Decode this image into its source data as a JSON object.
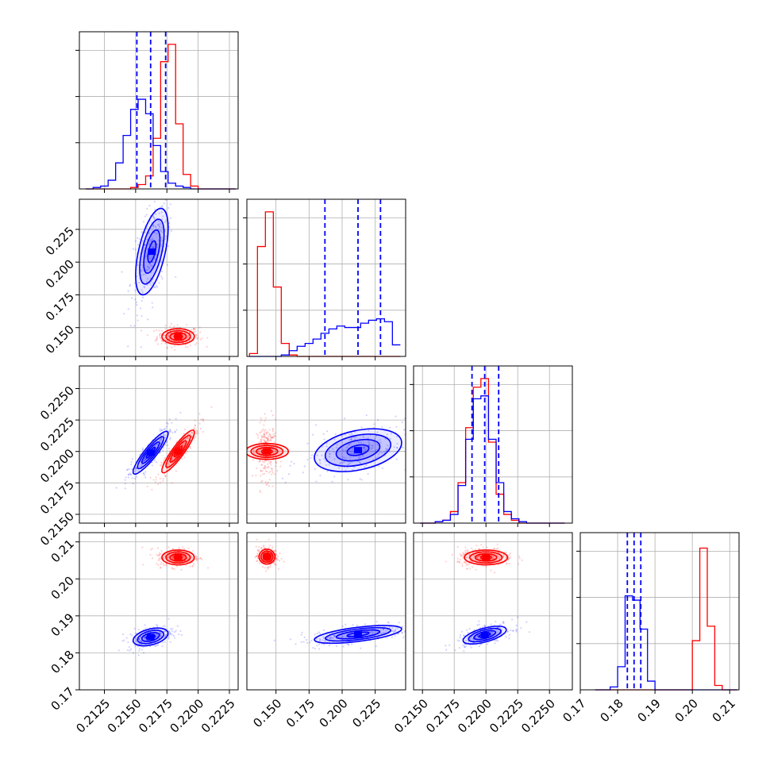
{
  "chart_data": {
    "type": "corner",
    "colors": {
      "blue": "#0000ff",
      "red": "#ff0000"
    },
    "series_color_names": [
      "blue",
      "red"
    ],
    "grid": true,
    "params": [
      {
        "range": [
          0.2105,
          0.2232
        ],
        "ticks": [
          "0.2125",
          "0.2150",
          "0.2175",
          "0.2200",
          "0.2225"
        ],
        "tick_values": [
          0.2125,
          0.215,
          0.2175,
          0.22,
          0.2225
        ]
      },
      {
        "range": [
          0.128,
          0.248
        ],
        "ticks": [
          "0.150",
          "0.175",
          "0.200",
          "0.225"
        ],
        "tick_values": [
          0.15,
          0.175,
          0.2,
          0.225
        ]
      },
      {
        "range": [
          0.2143,
          0.2268
        ],
        "ticks": [
          "0.2150",
          "0.2175",
          "0.2200",
          "0.2225",
          "0.2250"
        ],
        "tick_values": [
          0.215,
          0.2175,
          0.22,
          0.2225,
          0.225
        ]
      },
      {
        "range": [
          0.17,
          0.2125
        ],
        "ticks": [
          "0.17",
          "0.18",
          "0.19",
          "0.20",
          "0.21"
        ],
        "tick_values": [
          0.17,
          0.18,
          0.19,
          0.2,
          0.21
        ]
      }
    ],
    "histograms": [
      {
        "param": 0,
        "bin_edges": [
          0.211,
          0.2116,
          0.2122,
          0.2128,
          0.2134,
          0.214,
          0.2146,
          0.2152,
          0.2158,
          0.2164,
          0.217,
          0.2176,
          0.2182,
          0.2188,
          0.2194,
          0.22,
          0.2206,
          0.2212,
          0.2218,
          0.2224,
          0.223
        ],
        "blue": [
          0.0,
          0.01,
          0.02,
          0.06,
          0.18,
          0.37,
          0.55,
          0.62,
          0.52,
          0.3,
          0.12,
          0.04,
          0.02,
          0.01,
          0.0,
          0.0,
          0.0,
          0.0,
          0.0,
          0.0
        ],
        "red": [
          0.0,
          0.0,
          0.0,
          0.0,
          0.0,
          0.0,
          0.01,
          0.03,
          0.09,
          0.35,
          0.88,
          1.0,
          0.45,
          0.1,
          0.02,
          0.0,
          0.0,
          0.0,
          0.0,
          0.0
        ],
        "quantiles_blue": [
          0.2151,
          0.2162,
          0.2174
        ]
      },
      {
        "param": 1,
        "bin_edges": [
          0.13,
          0.136,
          0.142,
          0.148,
          0.154,
          0.16,
          0.166,
          0.172,
          0.178,
          0.184,
          0.19,
          0.196,
          0.202,
          0.208,
          0.214,
          0.22,
          0.226,
          0.232,
          0.238,
          0.244
        ],
        "blue": [
          0.0,
          0.0,
          0.0,
          0.0,
          0.01,
          0.04,
          0.07,
          0.09,
          0.12,
          0.16,
          0.19,
          0.21,
          0.2,
          0.2,
          0.23,
          0.25,
          0.26,
          0.24,
          0.08
        ],
        "red": [
          0.02,
          0.76,
          1.0,
          0.48,
          0.09,
          0.01,
          0.0,
          0.0,
          0.0,
          0.0,
          0.0,
          0.0,
          0.0,
          0.0,
          0.0,
          0.0,
          0.0,
          0.0,
          0.0
        ],
        "quantiles_blue": [
          0.187,
          0.212,
          0.229
        ]
      },
      {
        "param": 2,
        "bin_edges": [
          0.2148,
          0.2154,
          0.216,
          0.2166,
          0.2172,
          0.2178,
          0.2184,
          0.219,
          0.2196,
          0.2202,
          0.2208,
          0.2214,
          0.222,
          0.2226,
          0.2232,
          0.2238,
          0.2244,
          0.225,
          0.2256,
          0.2262
        ],
        "blue": [
          0.0,
          0.0,
          0.01,
          0.02,
          0.06,
          0.26,
          0.58,
          0.86,
          0.88,
          0.58,
          0.28,
          0.08,
          0.03,
          0.01,
          0.0,
          0.0,
          0.0,
          0.0,
          0.0
        ],
        "red": [
          0.0,
          0.0,
          0.01,
          0.02,
          0.08,
          0.28,
          0.66,
          0.94,
          1.0,
          0.56,
          0.2,
          0.06,
          0.02,
          0.0,
          0.0,
          0.0,
          0.0,
          0.0,
          0.0
        ],
        "quantiles_blue": [
          0.2189,
          0.2199,
          0.221
        ]
      },
      {
        "param": 3,
        "bin_edges": [
          0.174,
          0.176,
          0.178,
          0.18,
          0.182,
          0.184,
          0.186,
          0.188,
          0.19,
          0.192,
          0.194,
          0.196,
          0.198,
          0.2,
          0.202,
          0.204,
          0.206,
          0.208,
          0.21,
          0.212
        ],
        "blue": [
          0.0,
          0.0,
          0.02,
          0.16,
          0.65,
          0.62,
          0.42,
          0.06,
          0.0,
          0.0,
          0.0,
          0.0,
          0.0,
          0.0,
          0.0,
          0.0,
          0.0,
          0.0,
          0.0
        ],
        "red": [
          0.0,
          0.0,
          0.0,
          0.0,
          0.0,
          0.0,
          0.0,
          0.0,
          0.0,
          0.0,
          0.0,
          0.0,
          0.0,
          0.34,
          0.98,
          0.44,
          0.03,
          0.0,
          0.0
        ],
        "quantiles_blue": [
          0.1826,
          0.1844,
          0.1862
        ]
      }
    ],
    "pairs": [
      {
        "x_param": 0,
        "y_param": 1,
        "blue": {
          "mean": [
            0.2163,
            0.208
          ],
          "sd": [
            0.00065,
            0.0165
          ],
          "corr": 0.55
        },
        "red": {
          "mean": [
            0.2184,
            0.1432
          ],
          "sd": [
            0.00065,
            0.003
          ],
          "corr": 0.0
        }
      },
      {
        "x_param": 0,
        "y_param": 2,
        "blue": {
          "mean": [
            0.2162,
            0.2199
          ],
          "sd": [
            0.0007,
            0.00085
          ],
          "corr": 0.9
        },
        "red": {
          "mean": [
            0.2184,
            0.22
          ],
          "sd": [
            0.00065,
            0.00085
          ],
          "corr": 0.9
        }
      },
      {
        "x_param": 1,
        "y_param": 2,
        "blue": {
          "mean": [
            0.212,
            0.2201
          ],
          "sd": [
            0.0165,
            0.00085
          ],
          "corr": 0.35
        },
        "red": {
          "mean": [
            0.1432,
            0.22
          ],
          "sd": [
            0.003,
            0.00085
          ],
          "corr": 0.0
        }
      },
      {
        "x_param": 0,
        "y_param": 3,
        "blue": {
          "mean": [
            0.2162,
            0.1843
          ],
          "sd": [
            0.0007,
            0.0012
          ],
          "corr": 0.4
        },
        "red": {
          "mean": [
            0.2184,
            0.2058
          ],
          "sd": [
            0.00065,
            0.001
          ],
          "corr": 0.0
        }
      },
      {
        "x_param": 1,
        "y_param": 3,
        "blue": {
          "mean": [
            0.212,
            0.185
          ],
          "sd": [
            0.0165,
            0.0012
          ],
          "corr": 0.6
        },
        "red": {
          "mean": [
            0.1432,
            0.206
          ],
          "sd": [
            0.003,
            0.001
          ],
          "corr": 0.0
        }
      },
      {
        "x_param": 2,
        "y_param": 3,
        "blue": {
          "mean": [
            0.2199,
            0.1848
          ],
          "sd": [
            0.00085,
            0.0012
          ],
          "corr": 0.6
        },
        "red": {
          "mean": [
            0.22,
            0.2058
          ],
          "sd": [
            0.00085,
            0.001
          ],
          "corr": 0.0
        }
      }
    ]
  }
}
